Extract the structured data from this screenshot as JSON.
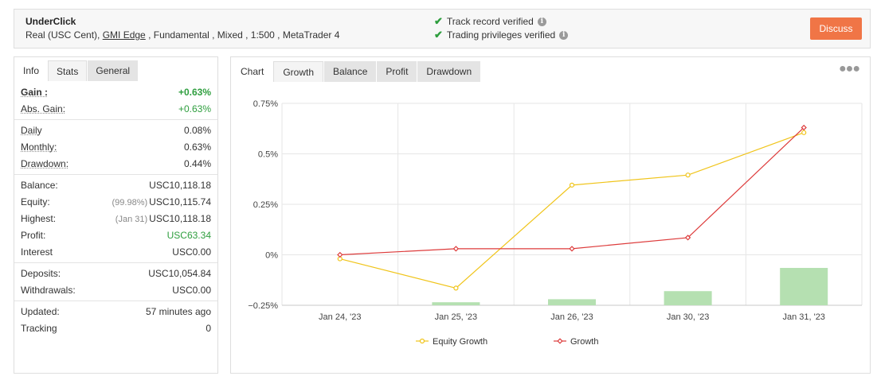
{
  "header": {
    "account_name": "UnderClick",
    "account_type": "Real (USC Cent), ",
    "broker": "GMI Edge",
    "details_rest": " , Fundamental , Mixed , 1:500 , MetaTrader 4",
    "verify_track": "Track record verified",
    "verify_privileges": "Trading privileges verified",
    "discuss_label": "Discuss"
  },
  "left_tabs": [
    "Info",
    "Stats",
    "General"
  ],
  "stats": {
    "gain": {
      "label": "Gain :",
      "value": "+0.63%"
    },
    "abs_gain": {
      "label": "Abs. Gain:",
      "value": "+0.63%"
    },
    "daily": {
      "label": "Daily",
      "value": "0.08%"
    },
    "monthly": {
      "label": "Monthly:",
      "value": "0.63%"
    },
    "drawdown": {
      "label": "Drawdown:",
      "value": "0.44%"
    },
    "balance": {
      "label": "Balance:",
      "value": "USC10,118.18"
    },
    "equity": {
      "label": "Equity:",
      "sub": "(99.98%)",
      "value": "USC10,115.74"
    },
    "highest": {
      "label": "Highest:",
      "sub": "(Jan 31)",
      "value": "USC10,118.18"
    },
    "profit": {
      "label": "Profit:",
      "value": "USC63.34"
    },
    "interest": {
      "label": "Interest",
      "value": "USC0.00"
    },
    "deposits": {
      "label": "Deposits:",
      "value": "USC10,054.84"
    },
    "withdrawals": {
      "label": "Withdrawals:",
      "value": "USC0.00"
    },
    "updated": {
      "label": "Updated:",
      "value": "57 minutes ago"
    },
    "tracking": {
      "label": "Tracking",
      "value": "0"
    }
  },
  "chart_tabs": [
    "Chart",
    "Growth",
    "Balance",
    "Profit",
    "Drawdown"
  ],
  "colors": {
    "equity": "#f0c419",
    "growth": "#dd3b3b",
    "bars": "#b5e0b1",
    "accent": "#f07546",
    "verified": "#2e9e3e"
  },
  "chart_data": {
    "type": "line",
    "categories": [
      "Jan 24, '23",
      "Jan 25, '23",
      "Jan 26, '23",
      "Jan 30, '23",
      "Jan 31, '23"
    ],
    "ylim": [
      -0.25,
      0.75
    ],
    "yticks": [
      "0.75%",
      "0.5%",
      "0.25%",
      "0%",
      "−0.25%"
    ],
    "ytick_values": [
      0.75,
      0.5,
      0.25,
      0,
      -0.25
    ],
    "series": [
      {
        "name": "Equity Growth",
        "values": [
          -0.02,
          -0.165,
          0.345,
          0.395,
          0.605
        ]
      },
      {
        "name": "Growth",
        "values": [
          0.0,
          0.03,
          0.03,
          0.085,
          0.63
        ]
      }
    ],
    "bars": [
      null,
      -0.235,
      -0.22,
      -0.18,
      -0.065
    ]
  }
}
